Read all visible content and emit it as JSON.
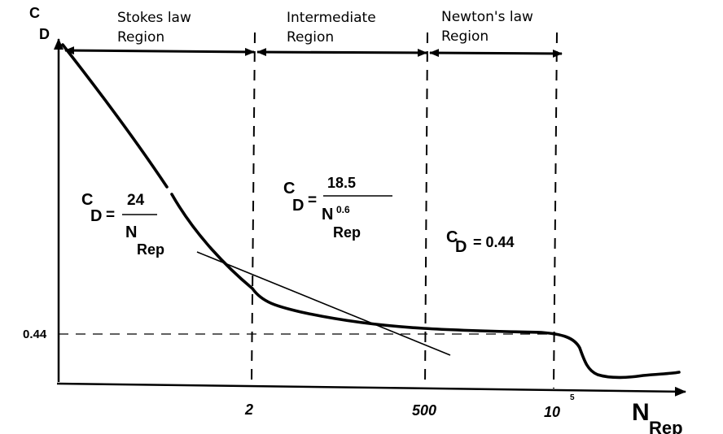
{
  "axis": {
    "y_label_main": "C",
    "y_label_sub": "D",
    "y_tick": "0.44",
    "x_label_main": "N",
    "x_label_sub": "Rep",
    "x_ticks": [
      {
        "label": "2",
        "sup": ""
      },
      {
        "label": "500",
        "sup": ""
      },
      {
        "label": "10",
        "sup": "5"
      }
    ]
  },
  "regions": [
    {
      "line1": "Stokes law",
      "line2": "Region"
    },
    {
      "line1": "Intermediate",
      "line2": "Region"
    },
    {
      "line1": "Newton's law",
      "line2": "Region"
    }
  ],
  "equations": {
    "stokes": {
      "lhs_main": "C",
      "lhs_sub": "D",
      "eq": "=",
      "num": "24",
      "den_main": "N",
      "den_sub": "Rep"
    },
    "intermediate": {
      "lhs_main": "C",
      "lhs_sub": "D",
      "eq": "=",
      "num": "18.5",
      "den_main": "N",
      "den_sup": "0.6",
      "den_sub": "Rep"
    },
    "newton": {
      "lhs_main": "C",
      "lhs_sub": "D",
      "rhs": "= 0.44"
    }
  }
}
